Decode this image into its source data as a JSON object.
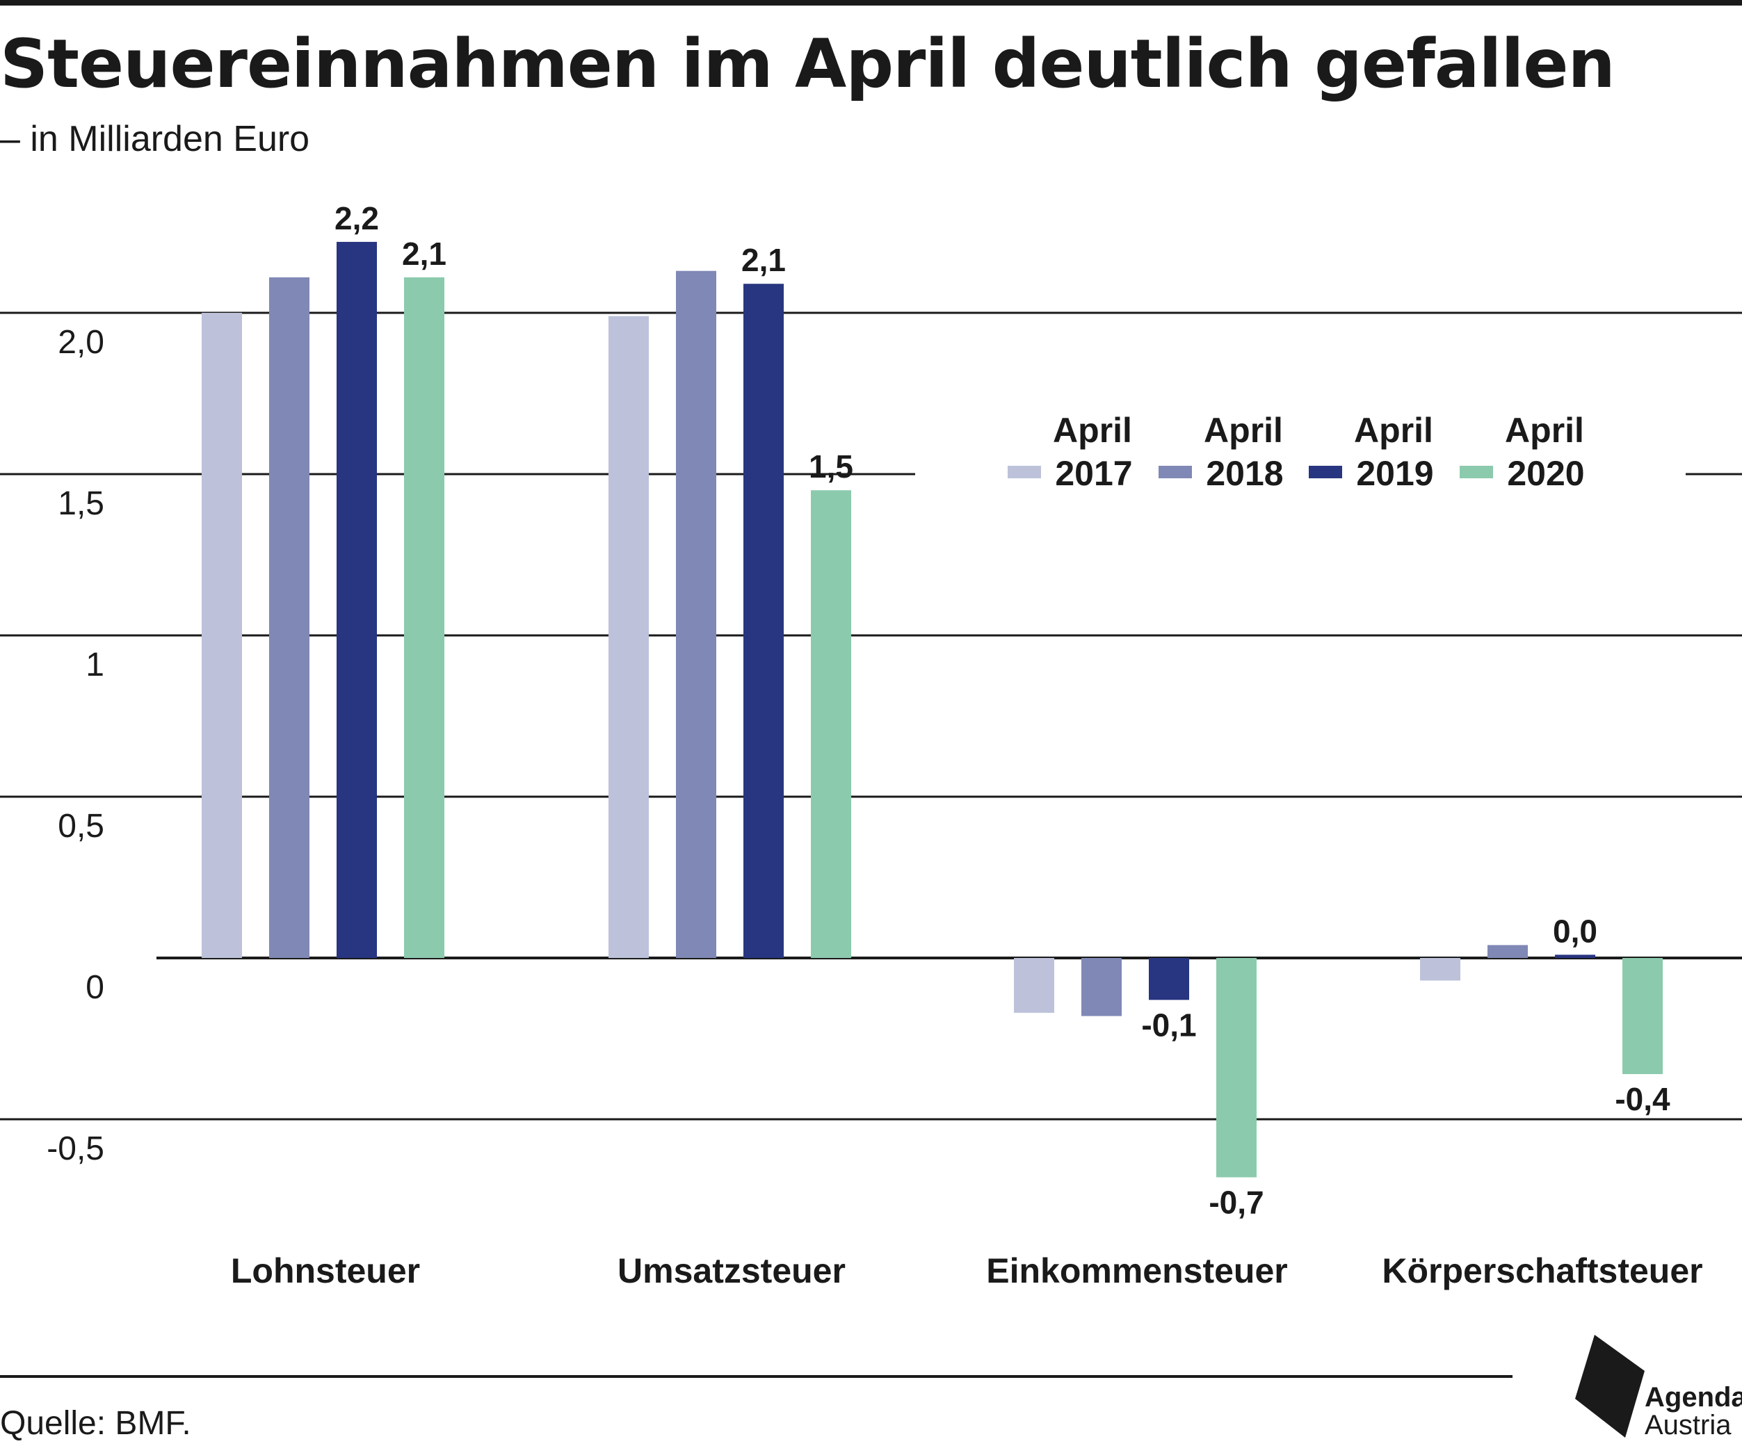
{
  "header": {
    "title": "Steuereinnahmen im April deutlich gefallen",
    "subtitle": "– in Milliarden Euro"
  },
  "footer": {
    "source": "Quelle: BMF.",
    "logo_line1": "Agenda",
    "logo_line2": "Austria"
  },
  "colors": {
    "2017": "#bdc2da",
    "2018": "#8088b5",
    "2019": "#283580",
    "2020": "#8ccaad",
    "grid": "#1a1a1a",
    "text": "#1a1a1a"
  },
  "chart_data": {
    "type": "bar",
    "categories": [
      "Lohnsteuer",
      "Umsatzsteuer",
      "Einkommensteuer",
      "Körperschaftsteuer"
    ],
    "series": [
      {
        "name": "April 2017",
        "legend_line1": "April",
        "legend_line2": "2017",
        "color": "#bdc2da",
        "values": [
          2.0,
          1.99,
          -0.17,
          -0.07
        ]
      },
      {
        "name": "April 2018",
        "legend_line1": "April",
        "legend_line2": "2018",
        "color": "#8088b5",
        "values": [
          2.11,
          2.13,
          -0.18,
          0.04
        ]
      },
      {
        "name": "April 2019",
        "legend_line1": "April",
        "legend_line2": "2019",
        "color": "#283580",
        "values": [
          2.22,
          2.09,
          -0.13,
          0.01
        ]
      },
      {
        "name": "April 2020",
        "legend_line1": "April",
        "legend_line2": "2020",
        "color": "#8ccaad",
        "values": [
          2.11,
          1.45,
          -0.68,
          -0.36
        ]
      }
    ],
    "data_labels": [
      {
        "category": "Lohnsteuer",
        "series": "April 2019",
        "value": 2.22,
        "text": "2,2"
      },
      {
        "category": "Lohnsteuer",
        "series": "April 2020",
        "value": 2.11,
        "text": "2,1"
      },
      {
        "category": "Umsatzsteuer",
        "series": "April 2019",
        "value": 2.09,
        "text": "2,1"
      },
      {
        "category": "Umsatzsteuer",
        "series": "April 2020",
        "value": 1.45,
        "text": "1,5"
      },
      {
        "category": "Einkommensteuer",
        "series": "April 2019",
        "value": -0.13,
        "text": "-0,1"
      },
      {
        "category": "Einkommensteuer",
        "series": "April 2020",
        "value": -0.68,
        "text": "-0,7"
      },
      {
        "category": "Körperschaftsteuer",
        "series": "April 2019",
        "value": 0.01,
        "text": "0,0"
      },
      {
        "category": "Körperschaftsteuer",
        "series": "April 2020",
        "value": -0.36,
        "text": "-0,4"
      }
    ],
    "y_ticks": [
      {
        "value": 2.0,
        "label": "2,0"
      },
      {
        "value": 1.5,
        "label": "1,5"
      },
      {
        "value": 1.0,
        "label": "1"
      },
      {
        "value": 0.5,
        "label": "0,5"
      },
      {
        "value": 0.0,
        "label": "0"
      },
      {
        "value": -0.5,
        "label": "-0,5"
      }
    ],
    "ylim": [
      -0.7,
      2.3
    ],
    "grid": true,
    "legend_position": "right",
    "xlabel": "",
    "ylabel": ""
  }
}
